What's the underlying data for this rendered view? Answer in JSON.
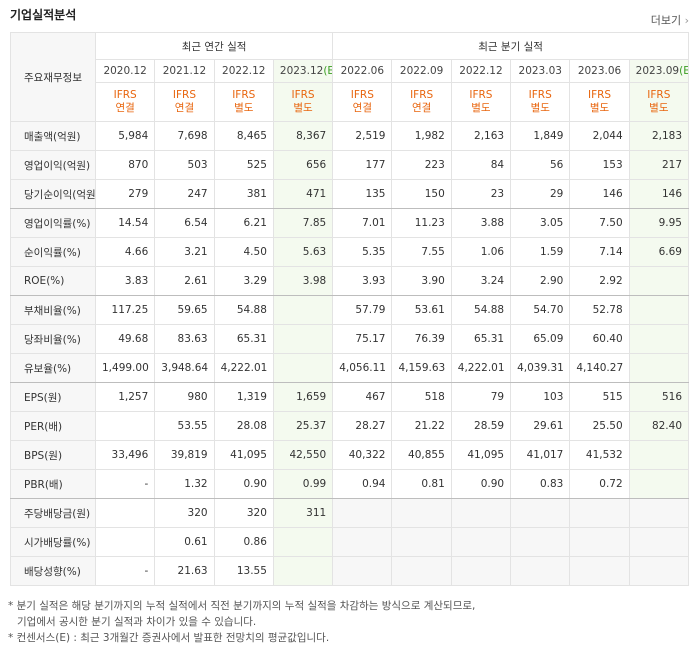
{
  "header": {
    "title": "기업실적분석",
    "more": "더보기"
  },
  "table": {
    "row_header": "주요재무정보",
    "annual_label": "최근 연간 실적",
    "quarter_label": "최근 분기 실적",
    "annual_count": 4,
    "periods": [
      {
        "date": "2020.12"
      },
      {
        "date": "2021.12"
      },
      {
        "date": "2022.12"
      },
      {
        "date": "2023.12",
        "mark": "(E)"
      },
      {
        "date": "2022.06"
      },
      {
        "date": "2022.09"
      },
      {
        "date": "2022.12"
      },
      {
        "date": "2023.03"
      },
      {
        "date": "2023.06"
      },
      {
        "date": "2023.09",
        "mark": "(E)"
      }
    ],
    "standards": [
      [
        "IFRS",
        "연결"
      ],
      [
        "IFRS",
        "연결"
      ],
      [
        "IFRS",
        "별도"
      ],
      [
        "IFRS",
        "별도"
      ],
      [
        "IFRS",
        "연결"
      ],
      [
        "IFRS",
        "연결"
      ],
      [
        "IFRS",
        "별도"
      ],
      [
        "IFRS",
        "별도"
      ],
      [
        "IFRS",
        "별도"
      ],
      [
        "IFRS",
        "별도"
      ]
    ],
    "rows": [
      {
        "name": "매출액(억원)",
        "values": [
          "5,984",
          "7,698",
          "8,465",
          "8,367",
          "2,519",
          "1,982",
          "2,163",
          "1,849",
          "2,044",
          "2,183"
        ]
      },
      {
        "name": "영업이익(억원)",
        "values": [
          "870",
          "503",
          "525",
          "656",
          "177",
          "223",
          "84",
          "56",
          "153",
          "217"
        ]
      },
      {
        "name": "당기순이익(억원)",
        "values": [
          "279",
          "247",
          "381",
          "471",
          "135",
          "150",
          "23",
          "29",
          "146",
          "146"
        ]
      },
      {
        "name": "영업이익률(%)",
        "values": [
          "14.54",
          "6.54",
          "6.21",
          "7.85",
          "7.01",
          "11.23",
          "3.88",
          "3.05",
          "7.50",
          "9.95"
        ]
      },
      {
        "name": "순이익률(%)",
        "values": [
          "4.66",
          "3.21",
          "4.50",
          "5.63",
          "5.35",
          "7.55",
          "1.06",
          "1.59",
          "7.14",
          "6.69"
        ]
      },
      {
        "name": "ROE(%)",
        "values": [
          "3.83",
          "2.61",
          "3.29",
          "3.98",
          "3.93",
          "3.90",
          "3.24",
          "2.90",
          "2.92",
          null
        ]
      },
      {
        "name": "부채비율(%)",
        "values": [
          "117.25",
          "59.65",
          "54.88",
          null,
          "57.79",
          "53.61",
          "54.88",
          "54.70",
          "52.78",
          null
        ]
      },
      {
        "name": "당좌비율(%)",
        "values": [
          "49.68",
          "83.63",
          "65.31",
          null,
          "75.17",
          "76.39",
          "65.31",
          "65.09",
          "60.40",
          null
        ]
      },
      {
        "name": "유보율(%)",
        "values": [
          "1,499.00",
          "3,948.64",
          "4,222.01",
          null,
          "4,056.11",
          "4,159.63",
          "4,222.01",
          "4,039.31",
          "4,140.27",
          null
        ]
      },
      {
        "name": "EPS(원)",
        "values": [
          "1,257",
          "980",
          "1,319",
          "1,659",
          "467",
          "518",
          "79",
          "103",
          "515",
          "516"
        ]
      },
      {
        "name": "PER(배)",
        "values": [
          null,
          "53.55",
          "28.08",
          "25.37",
          "28.27",
          "21.22",
          "28.59",
          "29.61",
          "25.50",
          "82.40"
        ]
      },
      {
        "name": "BPS(원)",
        "values": [
          "33,496",
          "39,819",
          "41,095",
          "42,550",
          "40,322",
          "40,855",
          "41,095",
          "41,017",
          "41,532",
          null
        ]
      },
      {
        "name": "PBR(배)",
        "values": [
          "-",
          "1.32",
          "0.90",
          "0.99",
          "0.94",
          "0.81",
          "0.90",
          "0.83",
          "0.72",
          null
        ]
      },
      {
        "name": "주당배당금(원)",
        "values": [
          null,
          "320",
          "320",
          "311",
          null,
          null,
          null,
          null,
          null,
          null
        ]
      },
      {
        "name": "시가배당률(%)",
        "values": [
          null,
          "0.61",
          "0.86",
          null,
          null,
          null,
          null,
          null,
          null,
          null
        ]
      },
      {
        "name": "배당성향(%)",
        "values": [
          "-",
          "21.63",
          "13.55",
          null,
          null,
          null,
          null,
          null,
          null,
          null
        ]
      }
    ],
    "separators_after": [
      2,
      5,
      8,
      12
    ]
  },
  "notes": [
    "* 분기 실적은 해당 분기까지의 누적 실적에서 직전 분기까지의 누적 실적을 차감하는 방식으로 계산되므로,",
    "기업에서 공시한 분기 실적과 차이가 있을 수 있습니다.",
    "* 컨센서스(E) : 최근 3개월간 증권사에서 발표한 전망치의 평균값입니다."
  ]
}
